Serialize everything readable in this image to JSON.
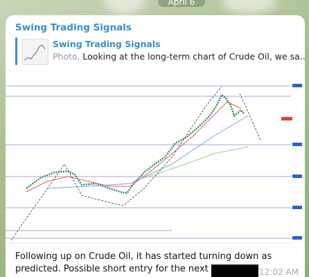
{
  "date": "April 6",
  "channel": "Swing Trading Signals",
  "reply": {
    "title": "Swing Trading Signals",
    "type": "Photo.",
    "text": "Looking at the long-term chart of Crude Oil, we sa..."
  },
  "message": {
    "text": "Following up on Crude Oil, it has started turning down as predicted. Possible short entry for the next leg down.",
    "time": "12:02 AM"
  }
}
